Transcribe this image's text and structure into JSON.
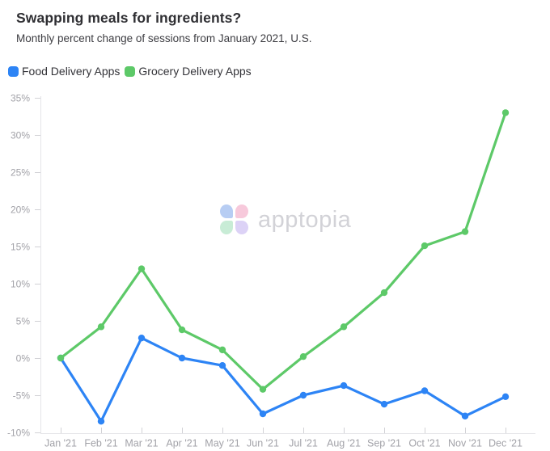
{
  "header": {
    "title": "Swapping meals for ingredients?",
    "subtitle": "Monthly percent change of sessions from January 2021, U.S."
  },
  "watermark": {
    "text": "apptopia",
    "petal_colors": {
      "top_left": "#b7cdf3",
      "top_right": "#f7c9db",
      "bottom_left": "#c8ecd6",
      "bottom_right": "#dcd2f6"
    },
    "text_color": "#d2d2d7"
  },
  "chart_data": {
    "type": "line",
    "title": "Swapping meals for ingredients?",
    "subtitle": "Monthly percent change of sessions from January 2021, U.S.",
    "categories": [
      "Jan '21",
      "Feb '21",
      "Mar '21",
      "Apr '21",
      "May '21",
      "Jun '21",
      "Jul '21",
      "Aug '21",
      "Sep '21",
      "Oct '21",
      "Nov '21",
      "Dec '21"
    ],
    "series": [
      {
        "name": "Food Delivery Apps",
        "color": "#2d84f5",
        "values": [
          0,
          -8.5,
          2.7,
          0,
          -1,
          -7.5,
          -5,
          -3.7,
          -6.2,
          -4.4,
          -7.8,
          -5.2
        ]
      },
      {
        "name": "Grocery Delivery Apps",
        "color": "#5dc968",
        "values": [
          0,
          4.2,
          12,
          3.8,
          1.1,
          -4.2,
          0.2,
          4.2,
          8.8,
          15.1,
          17,
          33
        ]
      }
    ],
    "xlabel": "",
    "ylabel": "",
    "ylim": [
      -10,
      35
    ],
    "ytick_step": 5,
    "ytick_suffix": "%",
    "grid": false,
    "legend_position": "top-left"
  }
}
